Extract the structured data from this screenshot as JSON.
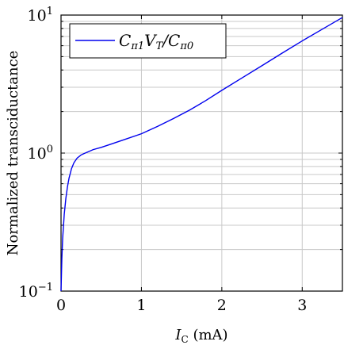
{
  "chart_data": {
    "type": "line",
    "xlabel": "I_C (mA)",
    "xlabel_parts": {
      "main": "I",
      "sub": "C",
      "unit": " (mA)"
    },
    "ylabel": "Normalized transciductance",
    "xlim": [
      0,
      3.5
    ],
    "ylim": [
      0.1,
      10
    ],
    "y_scale": "log",
    "grid": true,
    "legend_position": "top-left",
    "x_ticks": [
      {
        "value": 0,
        "label": "0"
      },
      {
        "value": 1,
        "label": "1"
      },
      {
        "value": 2,
        "label": "2"
      },
      {
        "value": 3,
        "label": "3"
      }
    ],
    "y_ticks": [
      {
        "value": 0.1,
        "base": "10",
        "exp": "−1"
      },
      {
        "value": 1,
        "base": "10",
        "exp": "0"
      },
      {
        "value": 10,
        "base": "10",
        "exp": "1"
      }
    ],
    "series": [
      {
        "name": "Cπ1VT/Cπ0",
        "name_parts": {
          "a": "C",
          "a_sub": "π1",
          "b": "V",
          "b_sub": "T",
          "c": "/C",
          "c_sub": "π0"
        },
        "color": "#0000ee",
        "x": [
          0,
          0.01,
          0.02,
          0.04,
          0.06,
          0.08,
          0.1,
          0.13,
          0.16,
          0.2,
          0.25,
          0.3,
          0.4,
          0.5,
          0.6,
          0.8,
          1.0,
          1.2,
          1.4,
          1.6,
          1.8,
          2.0,
          2.25,
          2.5,
          2.75,
          3.0,
          3.25,
          3.5
        ],
        "y": [
          0.1,
          0.17,
          0.24,
          0.36,
          0.47,
          0.57,
          0.66,
          0.77,
          0.85,
          0.92,
          0.97,
          1.0,
          1.06,
          1.1,
          1.15,
          1.26,
          1.38,
          1.56,
          1.78,
          2.05,
          2.4,
          2.85,
          3.5,
          4.3,
          5.3,
          6.5,
          7.9,
          9.6
        ]
      }
    ]
  }
}
